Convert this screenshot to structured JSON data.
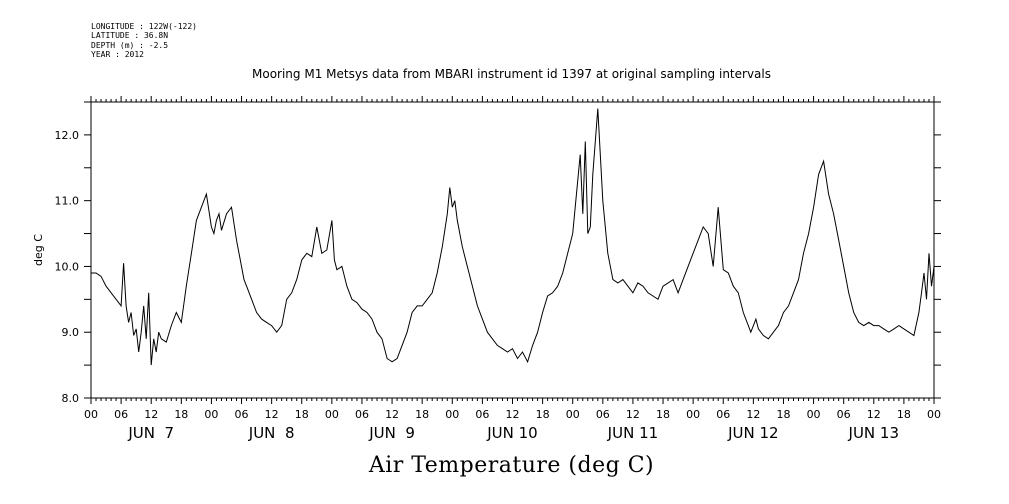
{
  "metadata": {
    "longitude": "LONGITUDE : 122W(-122)",
    "latitude": "LATITUDE : 36.8N",
    "depth": "DEPTH (m) : -2.5",
    "year": "YEAR : 2012"
  },
  "chart_data": {
    "type": "line",
    "title": "Mooring M1 Metsys data from MBARI instrument id 1397 at original sampling intervals",
    "bottom_title": "Air Temperature (deg C)",
    "xlabel": "",
    "ylabel": "deg C",
    "ylim": [
      8.0,
      12.5
    ],
    "xlim_hours": [
      0,
      168
    ],
    "y_ticks": [
      "8.0",
      "9.0",
      "10.0",
      "11.0",
      "12.0"
    ],
    "x_hour_labels": [
      "00",
      "06",
      "12",
      "18",
      "00",
      "06",
      "12",
      "18",
      "00",
      "06",
      "12",
      "18",
      "00",
      "06",
      "12",
      "18",
      "00",
      "06",
      "12",
      "18",
      "00",
      "06",
      "12",
      "18",
      "00",
      "06",
      "12",
      "18",
      "00"
    ],
    "day_labels": [
      "JUN  7",
      "JUN  8",
      "JUN  9",
      "JUN 10",
      "JUN 11",
      "JUN 12",
      "JUN 13"
    ],
    "grid": false,
    "series": [
      {
        "name": "Air Temperature",
        "x_hours": [
          0,
          1,
          2,
          3,
          4,
          5,
          6,
          6.5,
          7,
          7.5,
          8,
          8.5,
          9,
          9.5,
          10,
          10.5,
          11,
          11.5,
          12,
          12.5,
          13,
          13.5,
          14,
          15,
          16,
          17,
          18,
          19,
          20,
          21,
          22,
          23,
          24,
          24.5,
          25,
          25.5,
          26,
          27,
          28,
          29,
          30,
          30.5,
          31,
          32,
          33,
          34,
          35,
          36,
          37,
          38,
          39,
          40,
          41,
          42,
          43,
          44,
          45,
          46,
          47,
          48,
          48.5,
          49,
          50,
          51,
          52,
          53,
          54,
          55,
          56,
          57,
          58,
          59,
          60,
          61,
          62,
          63,
          64,
          65,
          66,
          67,
          68,
          69,
          70,
          71,
          71.5,
          72,
          72.5,
          73,
          74,
          75,
          76,
          77,
          78,
          79,
          80,
          81,
          82,
          83,
          84,
          85,
          86,
          87,
          88,
          89,
          90,
          91,
          92,
          93,
          94,
          95,
          96,
          96.5,
          97,
          97.5,
          98,
          98.5,
          99,
          99.5,
          100,
          101,
          102,
          103,
          104,
          105,
          106,
          107,
          108,
          109,
          110,
          111,
          112,
          113,
          114,
          115,
          116,
          117,
          118,
          119,
          120,
          121,
          122,
          123,
          124,
          125,
          126,
          127,
          128,
          129,
          130,
          130.5,
          131,
          131.5,
          132,
          132.5,
          133,
          134,
          135,
          136,
          137,
          138,
          139,
          140,
          141,
          142,
          143,
          144,
          145,
          146,
          147,
          148,
          149,
          150,
          151,
          152,
          153,
          154,
          155,
          156,
          157,
          158,
          159,
          160,
          161,
          162,
          163,
          164,
          165,
          165.5,
          166,
          166.5,
          167,
          167.5,
          168
        ],
        "values": [
          9.9,
          9.9,
          9.85,
          9.7,
          9.6,
          9.5,
          9.4,
          10.05,
          9.4,
          9.15,
          9.3,
          8.95,
          9.05,
          8.7,
          9.0,
          9.4,
          8.9,
          9.6,
          8.5,
          8.9,
          8.7,
          9.0,
          8.9,
          8.85,
          9.1,
          9.3,
          9.15,
          9.7,
          10.2,
          10.7,
          10.9,
          11.1,
          10.6,
          10.5,
          10.7,
          10.8,
          10.55,
          10.8,
          10.9,
          10.4,
          10.0,
          9.8,
          9.7,
          9.5,
          9.3,
          9.2,
          9.15,
          9.1,
          9.0,
          9.1,
          9.5,
          9.6,
          9.8,
          10.1,
          10.2,
          10.15,
          10.6,
          10.2,
          10.25,
          10.7,
          10.1,
          9.95,
          10.0,
          9.7,
          9.5,
          9.45,
          9.35,
          9.3,
          9.2,
          9.0,
          8.9,
          8.6,
          8.55,
          8.6,
          8.8,
          9.0,
          9.3,
          9.4,
          9.4,
          9.5,
          9.6,
          9.9,
          10.3,
          10.8,
          11.2,
          10.9,
          11.0,
          10.7,
          10.3,
          10.0,
          9.7,
          9.4,
          9.2,
          9.0,
          8.9,
          8.8,
          8.75,
          8.7,
          8.75,
          8.6,
          8.7,
          8.55,
          8.8,
          9.0,
          9.3,
          9.55,
          9.6,
          9.7,
          9.9,
          10.2,
          10.5,
          10.9,
          11.3,
          11.7,
          10.8,
          11.9,
          10.5,
          10.6,
          11.4,
          12.4,
          11.0,
          10.2,
          9.8,
          9.75,
          9.8,
          9.7,
          9.6,
          9.75,
          9.7,
          9.6,
          9.55,
          9.5,
          9.7,
          9.75,
          9.8,
          9.6,
          9.8,
          10.0,
          10.2,
          10.4,
          10.6,
          10.5,
          10.0,
          10.9,
          9.95,
          9.9,
          9.7,
          9.6,
          9.3,
          9.2,
          9.1,
          9.0,
          9.1,
          9.2,
          9.05,
          8.95,
          8.9,
          9.0,
          9.1,
          9.3,
          9.4,
          9.6,
          9.8,
          10.2,
          10.5,
          10.9,
          11.4,
          11.6,
          11.1,
          10.8,
          10.4,
          10.0,
          9.6,
          9.3,
          9.15,
          9.1,
          9.15,
          9.1,
          9.1,
          9.05,
          9.0,
          9.05,
          9.1,
          9.05,
          9.0,
          8.95,
          9.3,
          9.6,
          9.9,
          9.5,
          10.2,
          9.7,
          10.0
        ]
      }
    ]
  }
}
